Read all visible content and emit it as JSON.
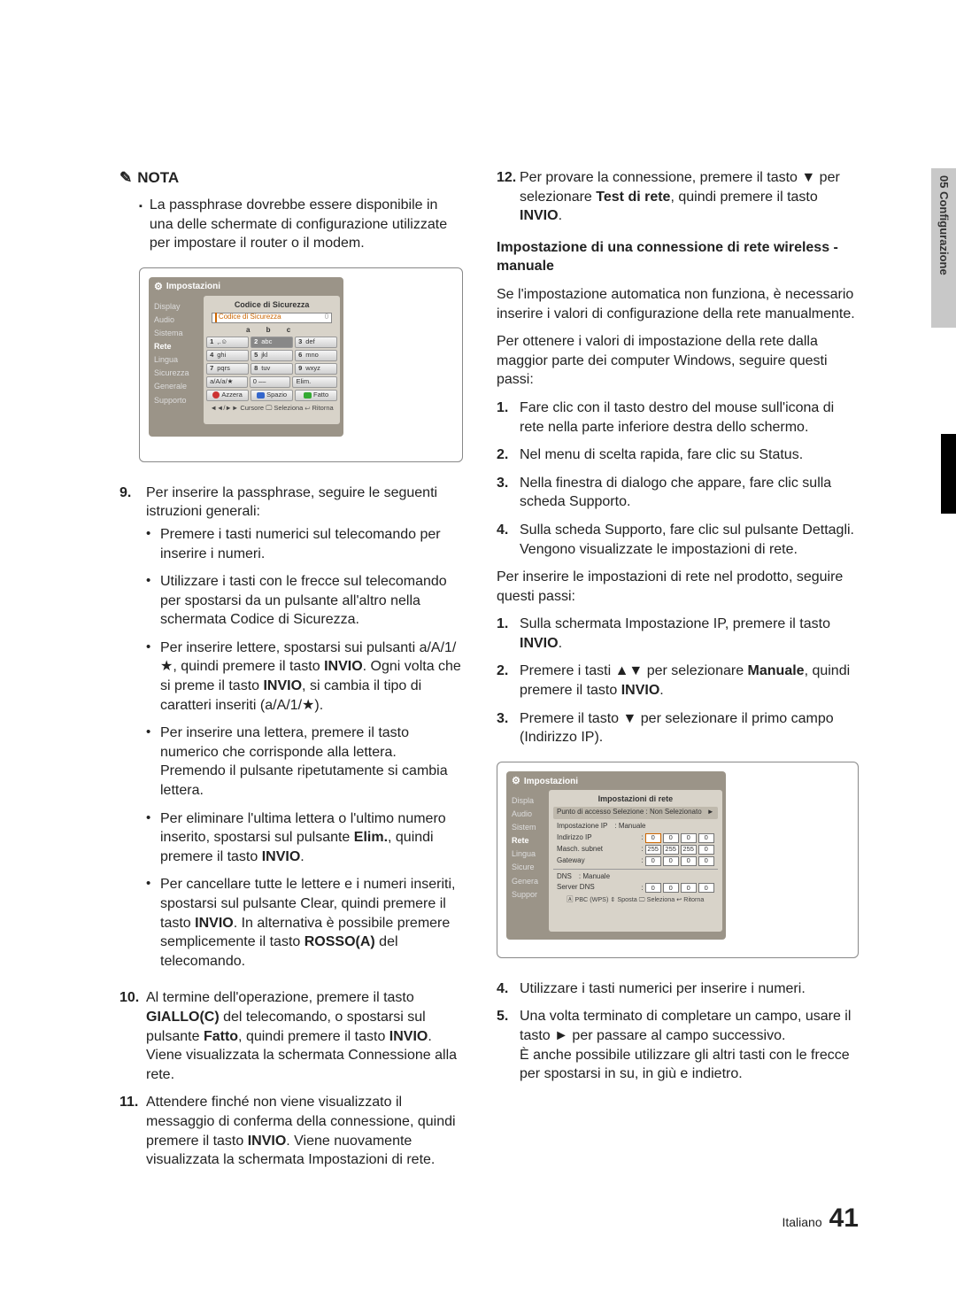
{
  "sideTab": "05   Configurazione",
  "note": {
    "label": "NOTA",
    "handGlyph": "✎",
    "bullet": "La passphrase dovrebbe essere disponibile in una delle schermate di configurazione utilizzate per impostare il router o il modem."
  },
  "screenshot1": {
    "title": "Impostazioni",
    "menu": [
      "Display",
      "Audio",
      "Sistema",
      "Rete",
      "Lingua",
      "Sicurezza",
      "Generale",
      "Supporto"
    ],
    "panelTitle": "Codice di Sicurezza",
    "inputPlaceholder": "Codice di Sicurezza",
    "inputRight": "0",
    "letters": "a  b  c",
    "keys": [
      [
        "1",
        ",.☺"
      ],
      [
        "2",
        "abc"
      ],
      [
        "3",
        "def"
      ],
      [
        "4",
        "ghi"
      ],
      [
        "5",
        "jkl"
      ],
      [
        "6",
        "mno"
      ],
      [
        "7",
        "pqrs"
      ],
      [
        "8",
        "tuv"
      ],
      [
        "9",
        "wxyz"
      ]
    ],
    "row4": [
      "a/A/a/★",
      "0  ––",
      "Elim."
    ],
    "row5": [
      "Azzera",
      "Spazio",
      "Fatto"
    ],
    "footer": "◄◄/►► Cursore   🖵 Seleziona   ↩ Ritorna"
  },
  "steps_left": {
    "s9": "Per inserire la passphrase, seguire le seguenti istruzioni generali:",
    "s9_sub": [
      "Premere i tasti numerici sul telecomando per inserire i numeri.",
      "Utilizzare i tasti con le frecce sul telecomando per spostarsi da un pulsante all'altro nella schermata Codice di Sicurezza.",
      "Per inserire lettere, spostarsi sui pulsanti a/A/1/★, quindi premere il tasto <b>INVIO</b>. Ogni volta che si preme il tasto <b>INVIO</b>, si cambia il tipo di caratteri inseriti (a/A/1/★).",
      "Per inserire una lettera, premere il tasto numerico che corrisponde alla lettera. Premendo il pulsante ripetutamente si cambia lettera.",
      "Per eliminare l'ultima lettera o l'ultimo numero inserito, spostarsi sul pulsante <b>Elim.</b>, quindi premere il tasto <b>INVIO</b>.",
      "Per cancellare tutte le lettere e i numeri inseriti, spostarsi sul pulsante Clear, quindi premere il tasto <b>INVIO</b>. In alternativa è possibile premere semplicemente il tasto <b>ROSSO(A)</b> del telecomando."
    ],
    "s10": "Al termine dell'operazione, premere il tasto <b>GIALLO(C)</b> del telecomando, o spostarsi sul pulsante <b>Fatto</b>, quindi premere il tasto <b>INVIO</b>. Viene visualizzata la schermata Connessione alla rete.",
    "s11": "Attendere finché non viene visualizzato il messaggio di conferma della connessione, quindi premere il tasto <b>INVIO</b>. Viene nuovamente visualizzata la schermata Impostazioni di rete."
  },
  "steps_right": {
    "s12": "Per provare la connessione, premere il tasto ▼ per selezionare <b>Test di rete</b>, quindi premere il tasto <b>INVIO</b>.",
    "h_manual": "Impostazione di una connessione di rete wireless - manuale",
    "p1": "Se l'impostazione automatica non funziona, è necessario inserire i valori di configurazione della rete manualmente.",
    "p2": "Per ottenere i valori di impostazione della rete dalla maggior parte dei computer Windows, seguire questi passi:",
    "win": [
      "Fare clic con il tasto destro del mouse sull'icona di rete nella parte inferiore destra dello schermo.",
      "Nel menu di scelta rapida, fare clic su Status.",
      "Nella finestra di dialogo che appare, fare clic sulla scheda Supporto.",
      "Sulla scheda Supporto, fare clic sul pulsante Dettagli. Vengono visualizzate le impostazioni di rete."
    ],
    "p3": "Per inserire le impostazioni di rete nel prodotto, seguire questi passi:",
    "prod": [
      "Sulla schermata Impostazione IP, premere il tasto <b>INVIO</b>.",
      "Premere i tasti ▲▼ per selezionare <b>Manuale</b>, quindi premere il tasto <b>INVIO</b>.",
      "Premere il tasto ▼ per selezionare il primo campo (Indirizzo IP)."
    ],
    "after": [
      "Utilizzare i tasti numerici per inserire i numeri.",
      "Una volta terminato di completare un campo, usare il tasto ► per passare al campo successivo.\nÈ anche possibile utilizzare gli altri tasti con le frecce per spostarsi in su, in giù e indietro."
    ]
  },
  "screenshot2": {
    "title": "Impostazioni",
    "panelTitle": "Impostazioni di rete",
    "menu": [
      "Display",
      "Audio",
      "Sistema",
      "Rete",
      "Lingua",
      "Sicurezza",
      "Generale",
      "Supporto"
    ],
    "ap_label": "Punto di accesso Selezione :",
    "ap_val": "Non Selezionato",
    "rows": [
      {
        "l": "Impostazione IP",
        "v": ": Manuale",
        "type": "plain"
      },
      {
        "l": "Indirizzo IP",
        "v": [
          "0",
          "0",
          "0",
          "0"
        ],
        "type": "oct",
        "sel": 0
      },
      {
        "l": "Masch. subnet",
        "v": [
          "255",
          "255",
          "255",
          "0"
        ],
        "type": "oct"
      },
      {
        "l": "Gateway",
        "v": [
          "0",
          "0",
          "0",
          "0"
        ],
        "type": "oct"
      },
      {
        "l": "DNS",
        "v": ": Manuale",
        "type": "plain",
        "div": true
      },
      {
        "l": "Server DNS",
        "v": [
          "0",
          "0",
          "0",
          "0"
        ],
        "type": "oct"
      }
    ],
    "footer": "🄰 PBC (WPS)  ⇕ Sposta  🖵 Seleziona  ↩ Ritorna"
  },
  "footer": {
    "lang": "Italiano",
    "page": "41"
  }
}
